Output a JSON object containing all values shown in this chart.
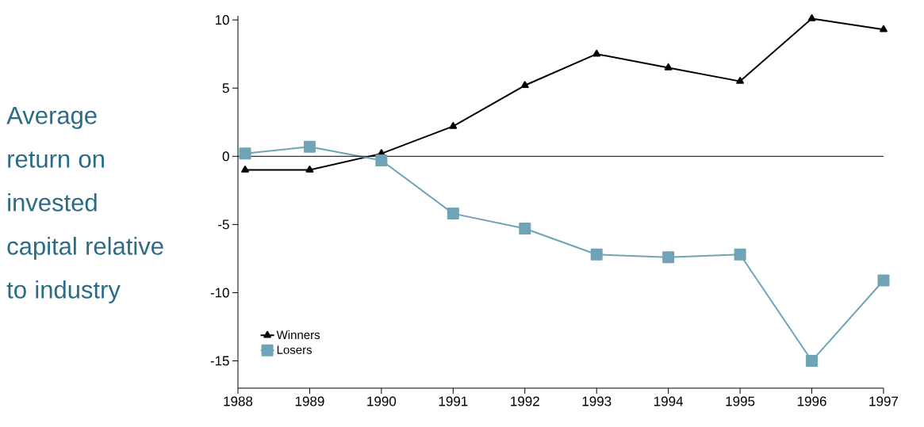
{
  "chart_data": {
    "type": "line",
    "ylabel": "Average return on invested capital relative to industry",
    "x": [
      1988.1,
      1989,
      1990,
      1991,
      1992,
      1993,
      1994,
      1995,
      1996,
      1997
    ],
    "series": [
      {
        "name": "Winners",
        "color": "#000000",
        "marker": "triangle",
        "values": [
          -1.0,
          -1.0,
          0.2,
          2.2,
          5.2,
          7.5,
          6.5,
          5.5,
          10.1,
          9.3
        ]
      },
      {
        "name": "Losers",
        "color": "#6fa3b8",
        "marker": "square",
        "values": [
          0.2,
          0.7,
          -0.3,
          -4.2,
          -5.3,
          -7.2,
          -7.4,
          -7.2,
          -15.0,
          -9.1
        ]
      }
    ],
    "xlim": [
      1988,
      1997
    ],
    "xticks": [
      1988,
      1989,
      1990,
      1991,
      1992,
      1993,
      1994,
      1995,
      1996,
      1997
    ],
    "ylim": [
      -17,
      10.3
    ],
    "yticks": [
      -15,
      -10,
      -5,
      0,
      5,
      10
    ],
    "ref_lines": [
      {
        "axis": "y",
        "value": 0,
        "color": "#000000"
      }
    ],
    "grid": false,
    "legend": "bottom left",
    "line_style": "solid"
  }
}
